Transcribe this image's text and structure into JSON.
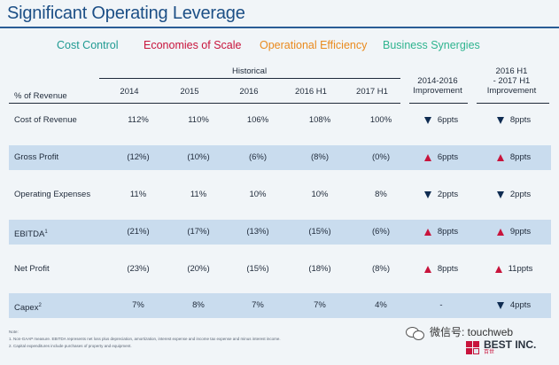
{
  "title": "Significant Operating Leverage",
  "themes": [
    "Cost Control",
    "Economies of Scale",
    "Operational Efficiency",
    "Business Synergies"
  ],
  "table": {
    "group_header": "Historical",
    "row_header": "% of Revenue",
    "columns": [
      "2014",
      "2015",
      "2016",
      "2016 H1",
      "2017 H1"
    ],
    "improvement_headers": [
      {
        "line1": "",
        "line2": "2014-2016",
        "line3": "Improvement"
      },
      {
        "line1": "2016 H1",
        "line2": "- 2017 H1",
        "line3": "Improvement"
      }
    ],
    "rows": [
      {
        "label": "Cost of Revenue",
        "sup": "",
        "values": [
          "112%",
          "110%",
          "106%",
          "108%",
          "100%"
        ],
        "imp1": {
          "dir": "down",
          "text": "6ppts"
        },
        "imp2": {
          "dir": "down",
          "text": "8ppts"
        }
      },
      {
        "label": "Gross Profit",
        "sup": "",
        "values": [
          "(12%)",
          "(10%)",
          "(6%)",
          "(8%)",
          "(0%)"
        ],
        "imp1": {
          "dir": "up",
          "text": "6ppts"
        },
        "imp2": {
          "dir": "up",
          "text": "8ppts"
        }
      },
      {
        "label": "Operating Expenses",
        "sup": "",
        "values": [
          "11%",
          "11%",
          "10%",
          "10%",
          "8%"
        ],
        "imp1": {
          "dir": "down",
          "text": "2ppts"
        },
        "imp2": {
          "dir": "down",
          "text": "2ppts"
        }
      },
      {
        "label": "EBITDA",
        "sup": "1",
        "values": [
          "(21%)",
          "(17%)",
          "(13%)",
          "(15%)",
          "(6%)"
        ],
        "imp1": {
          "dir": "up",
          "text": "8ppts"
        },
        "imp2": {
          "dir": "up",
          "text": "9ppts"
        }
      },
      {
        "label": "Net Profit",
        "sup": "",
        "values": [
          "(23%)",
          "(20%)",
          "(15%)",
          "(18%)",
          "(8%)"
        ],
        "imp1": {
          "dir": "up",
          "text": "8ppts"
        },
        "imp2": {
          "dir": "up",
          "text": "11ppts"
        }
      },
      {
        "label": "Capex",
        "sup": "2",
        "values": [
          "7%",
          "8%",
          "7%",
          "7%",
          "4%"
        ],
        "imp1": {
          "dir": "none",
          "text": "-"
        },
        "imp2": {
          "dir": "down",
          "text": "4ppts"
        }
      }
    ]
  },
  "notes": {
    "label": "Note:",
    "n1": "1.    Non-GAAP measure. EBITDA represents net loss plus depreciation, amortization, interest expense and income tax expense and minus interest income.",
    "n2": "2.    Capital expenditures include purchases of property and equipment."
  },
  "watermark": "微信号: touchweb",
  "logo": {
    "name": "BEST INC.",
    "sub": "百世"
  },
  "colors": {
    "title": "#1c4f86",
    "theme1": "#1f9a92",
    "theme2": "#c8143c",
    "theme3": "#e98a1d",
    "theme4": "#2fb48f",
    "shaded_row": "#c9dcee",
    "arrow_up": "#c8143c",
    "arrow_down": "#0f2c52"
  }
}
